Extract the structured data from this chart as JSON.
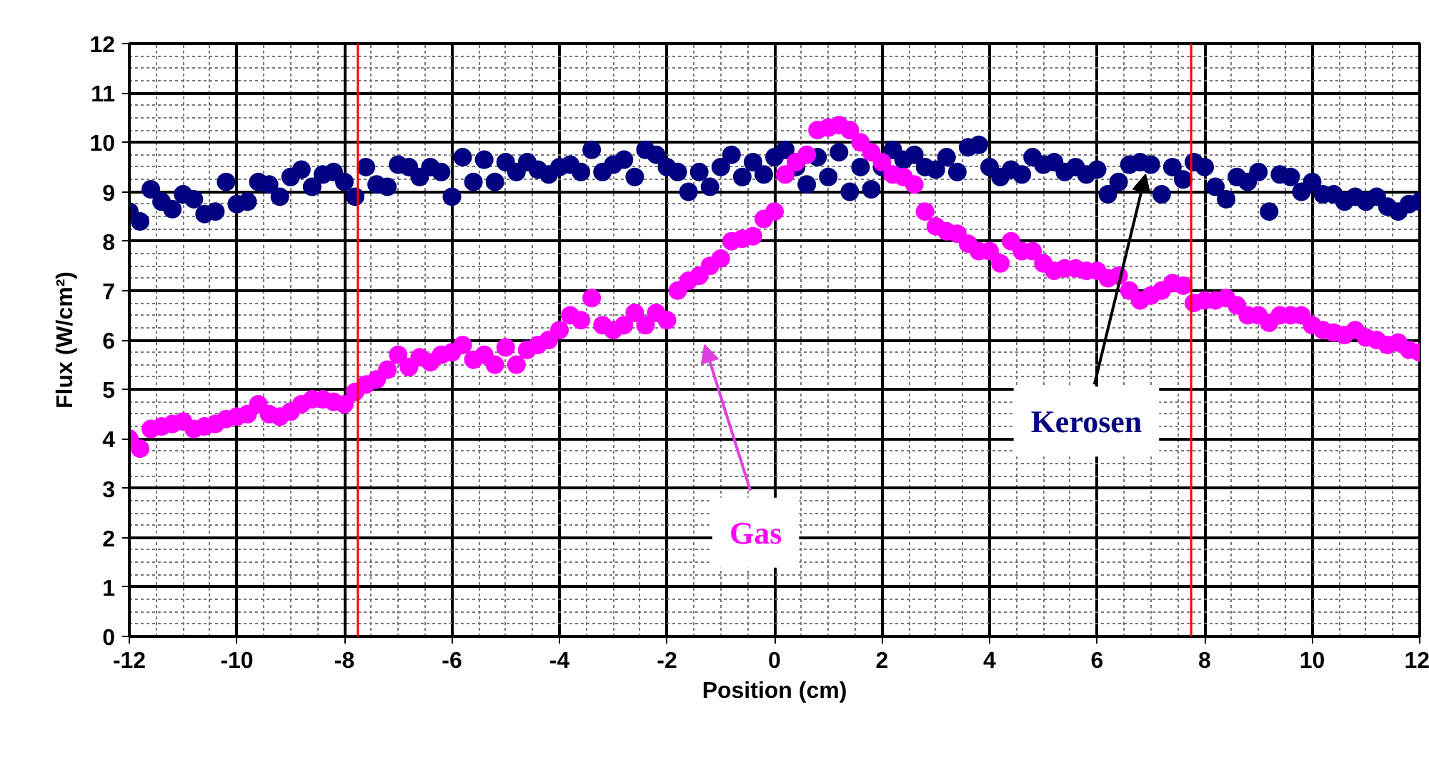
{
  "chart_data": {
    "type": "scatter",
    "xlabel": "Position (cm)",
    "ylabel": "Flux (W/cm²)",
    "xlim": [
      -12,
      12
    ],
    "ylim": [
      0,
      12
    ],
    "xticks": [
      -12,
      -10,
      -8,
      -6,
      -4,
      -2,
      0,
      2,
      4,
      6,
      8,
      10,
      12
    ],
    "yticks": [
      0,
      1,
      2,
      3,
      4,
      5,
      6,
      7,
      8,
      9,
      10,
      11,
      12
    ],
    "grid": true,
    "marker": "circle",
    "ref_lines": [
      {
        "axis": "x",
        "value": -7.75,
        "label": null,
        "color": "#ff0000"
      },
      {
        "axis": "x",
        "value": 7.75,
        "label": null,
        "color": "#ff0000"
      }
    ],
    "x": [
      -12,
      -11.8,
      -11.6,
      -11.4,
      -11.2,
      -11,
      -10.8,
      -10.6,
      -10.4,
      -10.2,
      -10,
      -9.8,
      -9.6,
      -9.4,
      -9.2,
      -9,
      -8.8,
      -8.6,
      -8.4,
      -8.2,
      -8,
      -7.8,
      -7.6,
      -7.4,
      -7.2,
      -7,
      -6.8,
      -6.6,
      -6.4,
      -6.2,
      -6,
      -5.8,
      -5.6,
      -5.4,
      -5.2,
      -5,
      -4.8,
      -4.6,
      -4.4,
      -4.2,
      -4,
      -3.8,
      -3.6,
      -3.4,
      -3.2,
      -3,
      -2.8,
      -2.6,
      -2.4,
      -2.2,
      -2,
      -1.8,
      -1.6,
      -1.4,
      -1.2,
      -1,
      -0.8,
      -0.6,
      -0.4,
      -0.2,
      0,
      0.2,
      0.4,
      0.6,
      0.8,
      1,
      1.2,
      1.4,
      1.6,
      1.8,
      2,
      2.2,
      2.4,
      2.6,
      2.8,
      3,
      3.2,
      3.4,
      3.6,
      3.8,
      4,
      4.2,
      4.4,
      4.6,
      4.8,
      5,
      5.2,
      5.4,
      5.6,
      5.8,
      6,
      6.2,
      6.4,
      6.6,
      6.8,
      7,
      7.2,
      7.4,
      7.6,
      7.8,
      8,
      8.2,
      8.4,
      8.6,
      8.8,
      9,
      9.2,
      9.4,
      9.6,
      9.8,
      10,
      10.2,
      10.4,
      10.6,
      10.8,
      11,
      11.2,
      11.4,
      11.6,
      11.8,
      12
    ],
    "series": [
      {
        "name": "Kerosen",
        "color": "#000080",
        "values": [
          8.6,
          8.4,
          9.05,
          8.8,
          8.65,
          8.95,
          8.85,
          8.55,
          8.6,
          9.2,
          8.75,
          8.8,
          9.2,
          9.15,
          8.9,
          9.3,
          9.45,
          9.1,
          9.35,
          9.4,
          9.2,
          8.9,
          9.5,
          9.15,
          9.1,
          9.55,
          9.5,
          9.3,
          9.5,
          9.4,
          8.9,
          9.7,
          9.2,
          9.65,
          9.2,
          9.6,
          9.4,
          9.6,
          9.45,
          9.35,
          9.5,
          9.55,
          9.4,
          9.85,
          9.4,
          9.55,
          9.65,
          9.3,
          9.85,
          9.75,
          9.5,
          9.4,
          9.0,
          9.4,
          9.1,
          9.5,
          9.75,
          9.3,
          9.6,
          9.35,
          9.7,
          9.85,
          9.5,
          9.15,
          9.7,
          9.3,
          9.8,
          9.0,
          9.5,
          9.05,
          9.5,
          9.85,
          9.65,
          9.75,
          9.5,
          9.45,
          9.7,
          9.4,
          9.9,
          9.95,
          9.5,
          9.3,
          9.45,
          9.35,
          9.7,
          9.55,
          9.6,
          9.4,
          9.5,
          9.35,
          9.45,
          8.95,
          9.2,
          9.55,
          9.6,
          9.55,
          8.95,
          9.5,
          9.25,
          9.6,
          9.5,
          9.1,
          8.85,
          9.3,
          9.2,
          9.4,
          8.6,
          9.35,
          9.3,
          9.0,
          9.2,
          8.95,
          8.95,
          8.8,
          8.9,
          8.8,
          8.9,
          8.7,
          8.6,
          8.75,
          8.8
        ]
      },
      {
        "name": "Gas",
        "color": "#ff00ff",
        "values": [
          4.0,
          3.8,
          4.2,
          4.25,
          4.3,
          4.35,
          4.2,
          4.25,
          4.3,
          4.4,
          4.45,
          4.5,
          4.7,
          4.5,
          4.45,
          4.55,
          4.7,
          4.8,
          4.8,
          4.75,
          4.7,
          4.95,
          5.1,
          5.2,
          5.4,
          5.7,
          5.45,
          5.65,
          5.55,
          5.7,
          5.75,
          5.9,
          5.6,
          5.7,
          5.5,
          5.85,
          5.5,
          5.8,
          5.9,
          6.0,
          6.2,
          6.5,
          6.4,
          6.85,
          6.3,
          6.2,
          6.3,
          6.55,
          6.3,
          6.55,
          6.4,
          7.0,
          7.2,
          7.3,
          7.5,
          7.65,
          8.0,
          8.05,
          8.1,
          8.45,
          8.6,
          9.35,
          9.6,
          9.75,
          10.25,
          10.3,
          10.35,
          10.25,
          10.0,
          9.8,
          9.6,
          9.35,
          9.3,
          9.15,
          8.6,
          8.3,
          8.2,
          8.15,
          7.95,
          7.8,
          7.8,
          7.55,
          8.0,
          7.8,
          7.8,
          7.55,
          7.4,
          7.45,
          7.45,
          7.4,
          7.4,
          7.25,
          7.3,
          7.0,
          6.8,
          6.9,
          7.0,
          7.15,
          7.1,
          6.75,
          6.8,
          6.8,
          6.85,
          6.7,
          6.5,
          6.5,
          6.35,
          6.5,
          6.5,
          6.5,
          6.3,
          6.2,
          6.15,
          6.1,
          6.2,
          6.05,
          6.0,
          5.9,
          5.95,
          5.8,
          5.75
        ]
      }
    ]
  }
}
